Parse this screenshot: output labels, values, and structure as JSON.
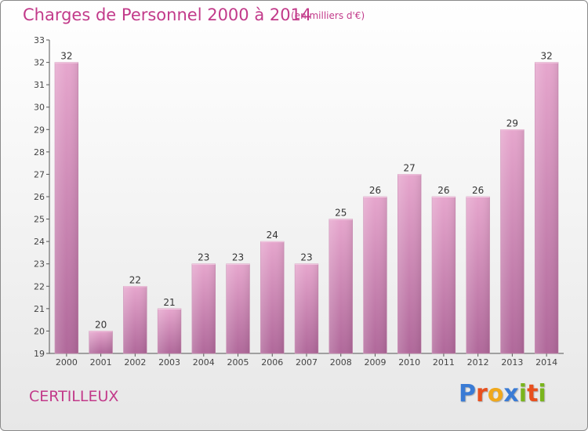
{
  "header": {
    "title": "Charges de Personnel 2000 à 2014",
    "subtitle": "(en milliers d'€)"
  },
  "footer": {
    "commune": "CERTILLEUX",
    "logo": [
      "P",
      "r",
      "o",
      "x",
      "i",
      "t",
      "i"
    ],
    "logo_colors": [
      "#3a7bd5",
      "#e8501e",
      "#f0a81c",
      "#3a7bd5",
      "#7ab51d",
      "#e8501e",
      "#7ab51d"
    ]
  },
  "chart_data": {
    "type": "bar",
    "title": "Charges de Personnel 2000 à 2014",
    "subtitle": "(en milliers d'€)",
    "categories": [
      "2000",
      "2001",
      "2002",
      "2003",
      "2004",
      "2005",
      "2006",
      "2007",
      "2008",
      "2009",
      "2010",
      "2011",
      "2012",
      "2013",
      "2014"
    ],
    "values": [
      32,
      20,
      22,
      21,
      23,
      23,
      24,
      23,
      25,
      26,
      27,
      26,
      26,
      29,
      32
    ],
    "ylim": [
      19,
      33
    ],
    "yticks": [
      19,
      20,
      21,
      22,
      23,
      24,
      25,
      26,
      27,
      28,
      29,
      30,
      31,
      32,
      33
    ],
    "grid": false,
    "bar_color": "#d98ab8"
  }
}
